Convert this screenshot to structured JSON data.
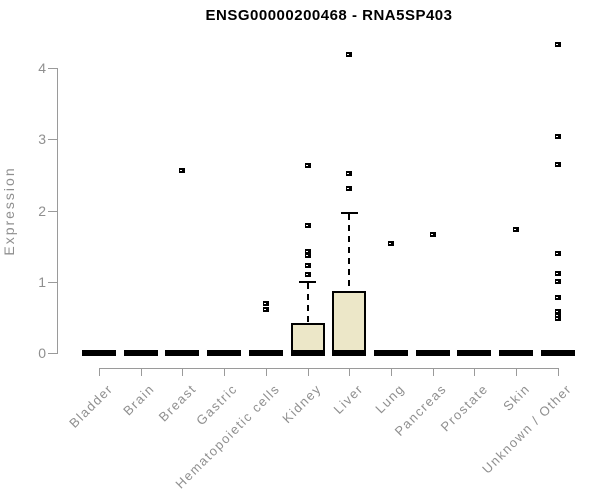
{
  "chart_data": {
    "type": "boxplot",
    "title": "ENSG00000200468 - RNA5SP403",
    "ylabel": "Expression",
    "xlabel": "",
    "ylim": [
      0,
      4.4
    ],
    "yticks": [
      0,
      1,
      2,
      3,
      4
    ],
    "grid": false,
    "legend": "none",
    "categories": [
      "Bladder",
      "Brain",
      "Breast",
      "Gastric",
      "Hematopoietic cells",
      "Kidney",
      "Liver",
      "Lung",
      "Pancreas",
      "Prostate",
      "Skin",
      "Unknown / Other"
    ],
    "series": [
      {
        "category": "Bladder",
        "whisker_low": 0,
        "q1": 0,
        "median": 0,
        "q3": 0,
        "whisker_high": 0,
        "outliers": []
      },
      {
        "category": "Brain",
        "whisker_low": 0,
        "q1": 0,
        "median": 0,
        "q3": 0,
        "whisker_high": 0,
        "outliers": []
      },
      {
        "category": "Breast",
        "whisker_low": 0,
        "q1": 0,
        "median": 0,
        "q3": 0,
        "whisker_high": 0,
        "outliers": [
          2.57
        ]
      },
      {
        "category": "Gastric",
        "whisker_low": 0,
        "q1": 0,
        "median": 0,
        "q3": 0,
        "whisker_high": 0,
        "outliers": []
      },
      {
        "category": "Hematopoietic cells",
        "whisker_low": 0,
        "q1": 0,
        "median": 0,
        "q3": 0,
        "whisker_high": 0,
        "outliers": [
          0.62,
          0.7
        ]
      },
      {
        "category": "Kidney",
        "whisker_low": 0,
        "q1": 0,
        "median": 0,
        "q3": 0.42,
        "whisker_high": 1.01,
        "outliers": [
          1.11,
          1.23,
          1.38,
          1.43,
          1.79,
          2.64
        ]
      },
      {
        "category": "Liver",
        "whisker_low": 0,
        "q1": 0,
        "median": 0,
        "q3": 0.87,
        "whisker_high": 1.98,
        "outliers": [
          2.31,
          2.52,
          4.2
        ]
      },
      {
        "category": "Lung",
        "whisker_low": 0,
        "q1": 0,
        "median": 0,
        "q3": 0,
        "whisker_high": 0,
        "outliers": [
          1.54
        ]
      },
      {
        "category": "Pancreas",
        "whisker_low": 0,
        "q1": 0,
        "median": 0,
        "q3": 0,
        "whisker_high": 0,
        "outliers": [
          1.67
        ]
      },
      {
        "category": "Prostate",
        "whisker_low": 0,
        "q1": 0,
        "median": 0,
        "q3": 0,
        "whisker_high": 0,
        "outliers": []
      },
      {
        "category": "Skin",
        "whisker_low": 0,
        "q1": 0,
        "median": 0,
        "q3": 0,
        "whisker_high": 0,
        "outliers": [
          1.74
        ]
      },
      {
        "category": "Unknown / Other",
        "whisker_low": 0,
        "q1": 0,
        "median": 0,
        "q3": 0,
        "whisker_high": 0,
        "outliers": [
          0.49,
          0.54,
          0.59,
          0.79,
          1.01,
          1.12,
          1.4,
          2.65,
          3.05,
          4.33
        ]
      }
    ],
    "colors": {
      "box_fill": "#ece7c8",
      "box_stroke": "#000000",
      "outlier": "#000000",
      "axis": "#9a9a9a",
      "tick_text": "#8f8f8f",
      "title_text": "#000000",
      "background": "#ffffff"
    }
  }
}
